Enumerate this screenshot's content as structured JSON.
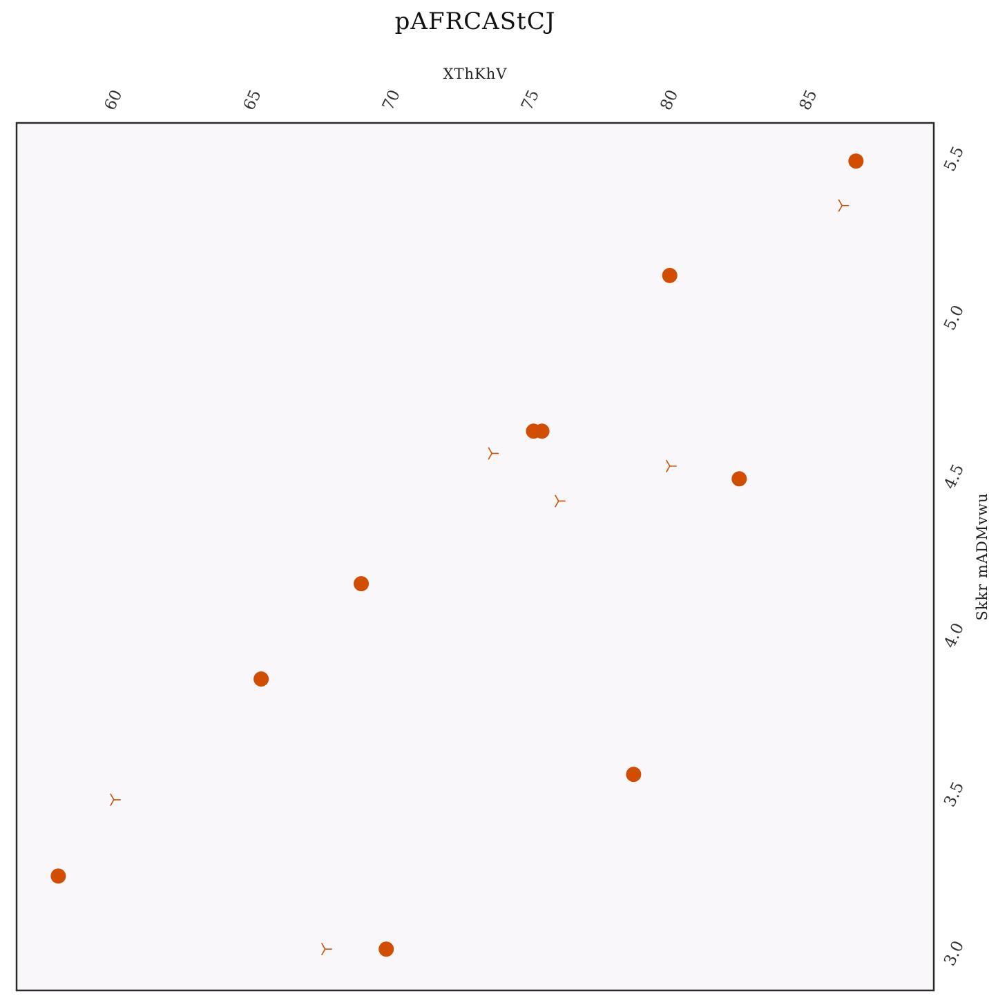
{
  "chart_data": {
    "type": "scatter",
    "title": "pAFRCAStCJ",
    "xlabel": "XThKhV",
    "ylabel": "Skkr mADMvwu",
    "xlim": [
      56.5,
      89.5
    ],
    "ylim": [
      2.89,
      5.62
    ],
    "xticks": [
      60,
      65,
      70,
      75,
      80,
      85
    ],
    "yticks": [
      3.0,
      3.5,
      4.0,
      4.5,
      5.0,
      5.5
    ],
    "x_axis_position": "top",
    "y_axis_position": "right",
    "grid": false,
    "legend": "none",
    "colors": {
      "marker": "#d14d00",
      "background": "#f9f7fa",
      "frame": "#2a2a2a"
    },
    "series": [
      {
        "marker": "circle",
        "points": [
          {
            "x": 86.7,
            "y": 5.5
          },
          {
            "x": 80.0,
            "y": 5.14
          },
          {
            "x": 75.1,
            "y": 4.65
          },
          {
            "x": 75.4,
            "y": 4.65
          },
          {
            "x": 82.5,
            "y": 4.5
          },
          {
            "x": 68.9,
            "y": 4.17
          },
          {
            "x": 65.3,
            "y": 3.87
          },
          {
            "x": 78.7,
            "y": 3.57
          },
          {
            "x": 58.0,
            "y": 3.25
          },
          {
            "x": 69.8,
            "y": 3.02
          }
        ]
      },
      {
        "marker": "tri_left",
        "points": [
          {
            "x": 86.2,
            "y": 5.36
          },
          {
            "x": 73.6,
            "y": 4.58
          },
          {
            "x": 80.0,
            "y": 4.54
          },
          {
            "x": 76.0,
            "y": 4.43
          },
          {
            "x": 60.0,
            "y": 3.49
          },
          {
            "x": 67.6,
            "y": 3.02
          }
        ]
      }
    ]
  }
}
